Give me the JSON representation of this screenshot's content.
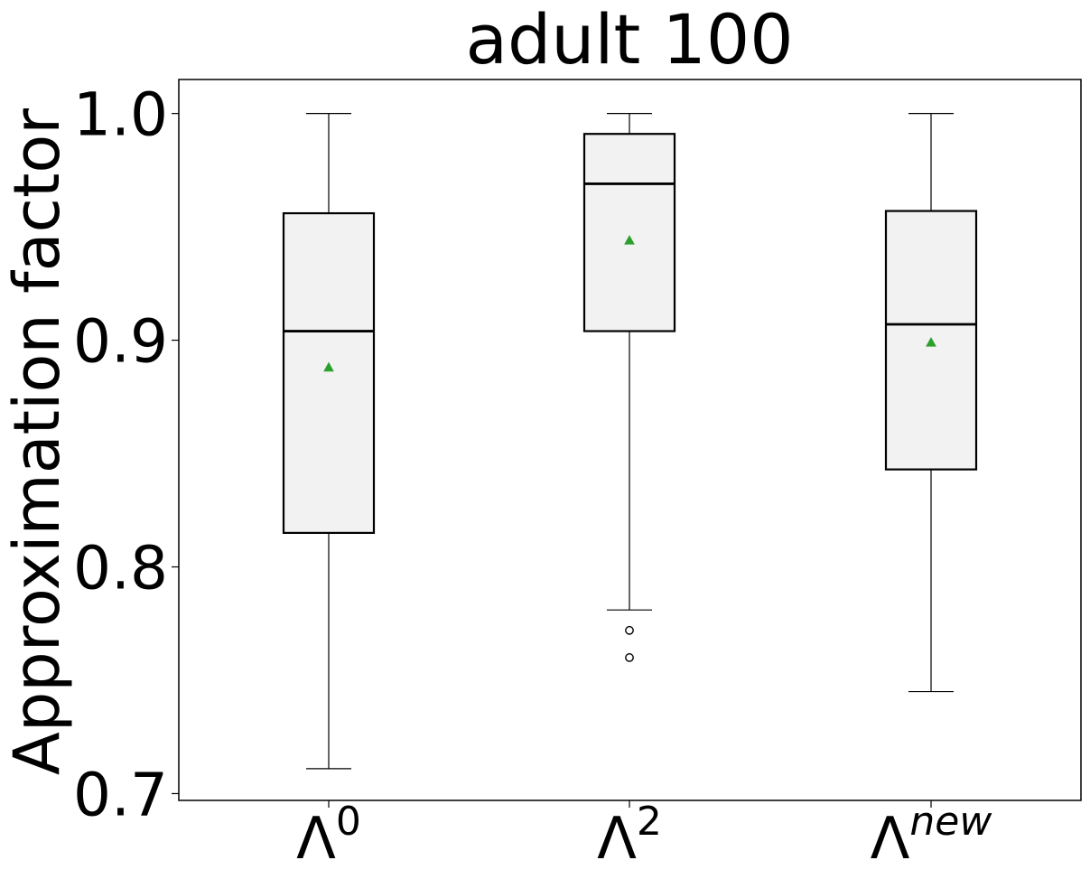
{
  "chart_data": {
    "type": "box",
    "title": "adult 100",
    "ylabel": "Approximation factor",
    "xlabel": "",
    "ylim": [
      0.697,
      1.015
    ],
    "yticks": [
      "0.7",
      "0.8",
      "0.9",
      "1.0"
    ],
    "ytick_values": [
      0.7,
      0.8,
      0.9,
      1.0
    ],
    "grid": false,
    "colors": {
      "box_fill": "#f2f2f2",
      "box_edge": "#000000",
      "mean_marker": "#2ca02c",
      "outlier_edge": "#000000"
    },
    "categories": [
      {
        "base": "Λ",
        "sup": "0",
        "sup_italic": false
      },
      {
        "base": "Λ",
        "sup": "2",
        "sup_italic": false
      },
      {
        "base": "Λ",
        "sup": "new",
        "sup_italic": true
      }
    ],
    "boxes": [
      {
        "whisker_low": 0.711,
        "q1": 0.815,
        "median": 0.904,
        "q3": 0.956,
        "whisker_high": 1.0,
        "mean": 0.888,
        "outliers": []
      },
      {
        "whisker_low": 0.781,
        "q1": 0.904,
        "median": 0.969,
        "q3": 0.991,
        "whisker_high": 1.0,
        "mean": 0.944,
        "outliers": [
          0.772,
          0.76
        ]
      },
      {
        "whisker_low": 0.745,
        "q1": 0.843,
        "median": 0.907,
        "q3": 0.957,
        "whisker_high": 1.0,
        "mean": 0.899,
        "outliers": []
      }
    ]
  }
}
